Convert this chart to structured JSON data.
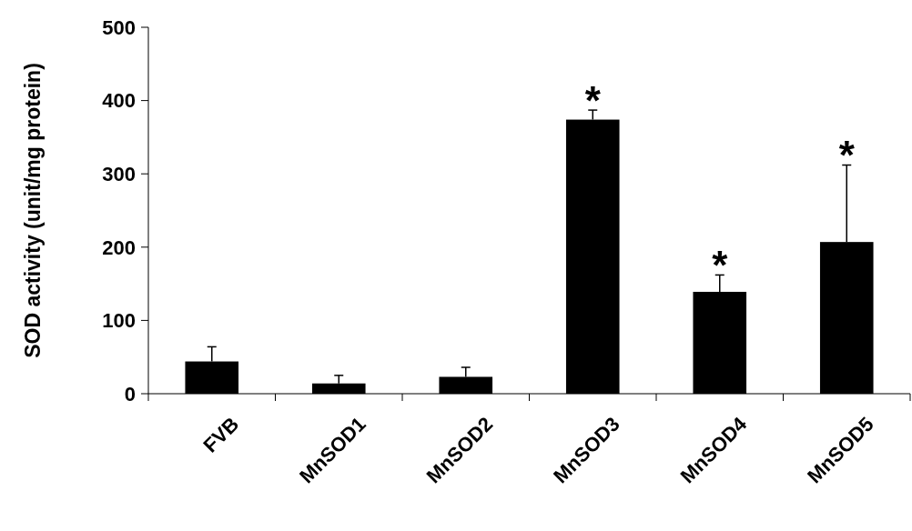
{
  "chart_data": {
    "type": "bar",
    "ylabel": "SOD activity (unit/mg protein)",
    "categories": [
      "FVB",
      "MnSOD1",
      "MnSOD2",
      "MnSOD3",
      "MnSOD4",
      "MnSOD5"
    ],
    "values": [
      44,
      14,
      23,
      374,
      139,
      207
    ],
    "errors": [
      [
        44,
        64
      ],
      [
        14,
        25
      ],
      [
        23,
        36
      ],
      [
        374,
        387
      ],
      [
        139,
        162
      ],
      [
        207,
        312
      ]
    ],
    "color": "#000000",
    "ylim": [
      0,
      500
    ],
    "yticks": [
      0,
      100,
      200,
      300,
      400,
      500
    ],
    "annotations": [
      "*",
      "*",
      "*"
    ]
  }
}
